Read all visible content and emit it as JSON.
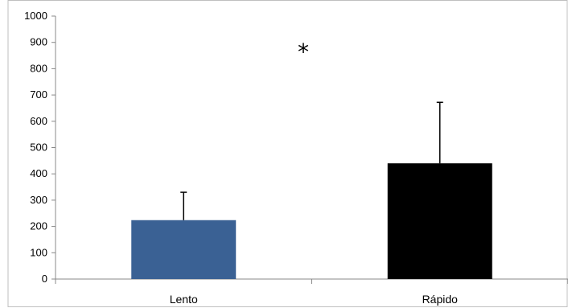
{
  "chart_data": {
    "type": "bar",
    "categories": [
      "Lento",
      "Rápido"
    ],
    "values": [
      224,
      440
    ],
    "error_plus": [
      106,
      232
    ],
    "colors": [
      "#3a6194",
      "#000000"
    ],
    "ylim": [
      0,
      1000
    ],
    "yticks": [
      0,
      100,
      200,
      300,
      400,
      500,
      600,
      700,
      800,
      900,
      1000
    ],
    "annotation": "*",
    "grid": false,
    "title": "",
    "xlabel": "",
    "ylabel": ""
  }
}
